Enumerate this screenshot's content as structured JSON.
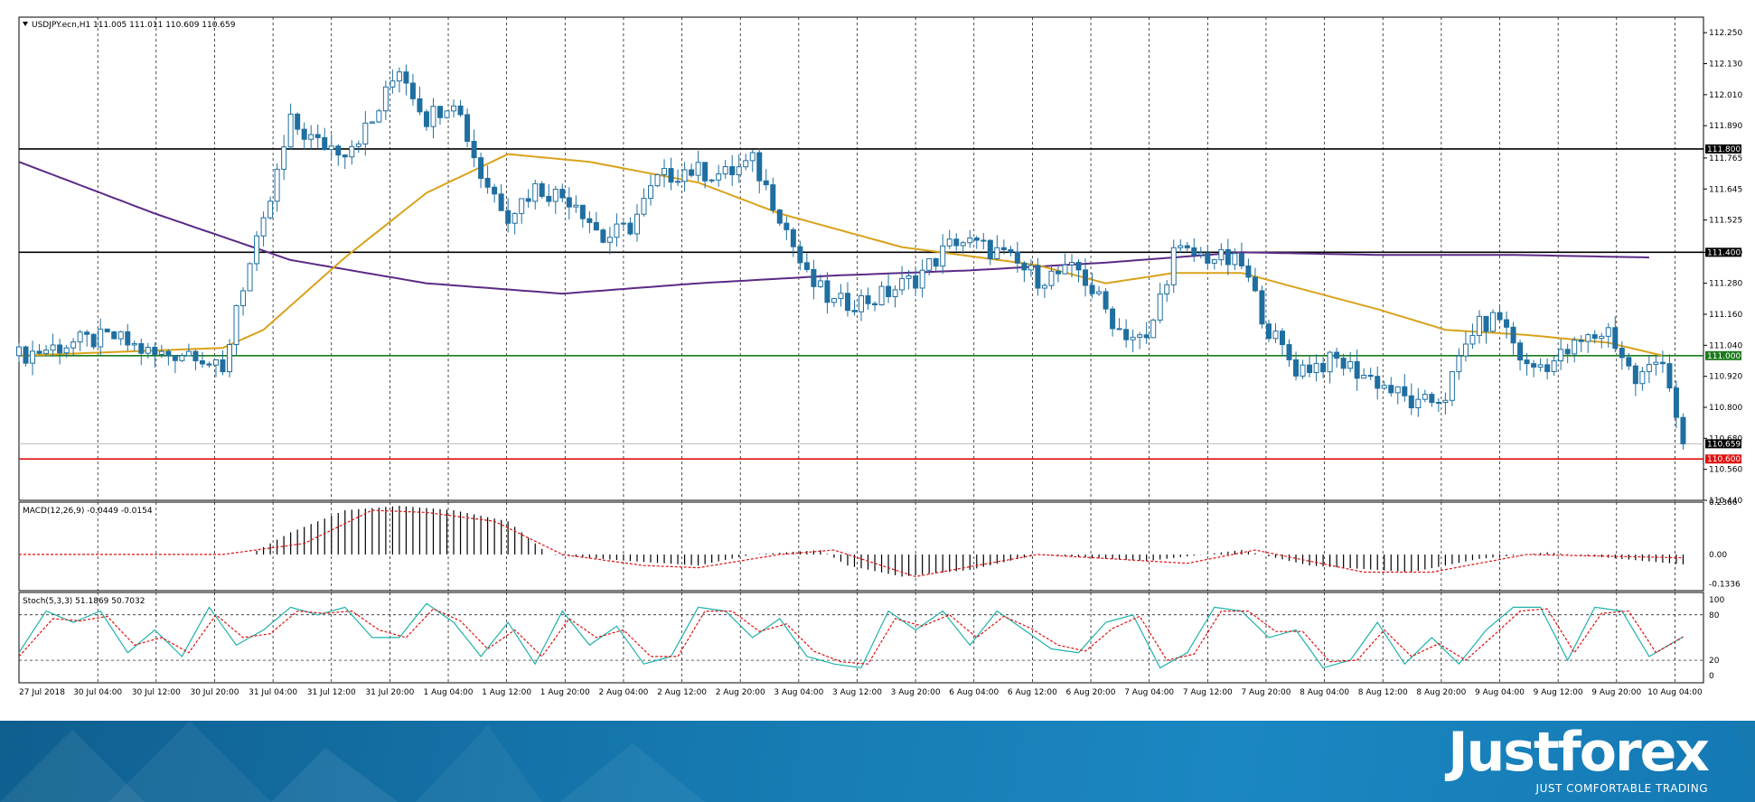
{
  "chart_data": [
    {
      "type": "candlestick",
      "title": "USDJPY.ecn,H1  111.005 111.011 110.609 110.659",
      "ylim": [
        110.44,
        112.31
      ],
      "yticks": [
        "112.250",
        "112.130",
        "112.010",
        "111.890",
        "111.765",
        "111.645",
        "111.525",
        "111.400",
        "111.280",
        "111.160",
        "111.040",
        "110.920",
        "110.800",
        "110.680",
        "110.560",
        "110.440"
      ],
      "xticks": [
        "27 Jul 2018",
        "30 Jul 04:00",
        "30 Jul 12:00",
        "30 Jul 20:00",
        "31 Jul 04:00",
        "31 Jul 12:00",
        "31 Jul 20:00",
        "1 Aug 04:00",
        "1 Aug 12:00",
        "1 Aug 20:00",
        "2 Aug 04:00",
        "2 Aug 12:00",
        "2 Aug 20:00",
        "3 Aug 04:00",
        "3 Aug 12:00",
        "3 Aug 20:00",
        "6 Aug 04:00",
        "6 Aug 12:00",
        "6 Aug 20:00",
        "7 Aug 04:00",
        "7 Aug 12:00",
        "7 Aug 20:00",
        "8 Aug 04:00",
        "8 Aug 12:00",
        "8 Aug 20:00",
        "9 Aug 04:00",
        "9 Aug 12:00",
        "9 Aug 20:00",
        "10 Aug 04:00"
      ],
      "price_path": [
        {
          "t": 0,
          "p": 111.0
        },
        {
          "t": 8,
          "p": 111.05
        },
        {
          "t": 14,
          "p": 111.07
        },
        {
          "t": 20,
          "p": 111.0
        },
        {
          "t": 26,
          "p": 111.02
        },
        {
          "t": 30,
          "p": 110.92
        },
        {
          "t": 32,
          "p": 111.2
        },
        {
          "t": 36,
          "p": 111.5
        },
        {
          "t": 40,
          "p": 111.9
        },
        {
          "t": 44,
          "p": 111.82
        },
        {
          "t": 48,
          "p": 111.8
        },
        {
          "t": 52,
          "p": 111.9
        },
        {
          "t": 56,
          "p": 112.12
        },
        {
          "t": 60,
          "p": 111.92
        },
        {
          "t": 64,
          "p": 112.0
        },
        {
          "t": 68,
          "p": 111.7
        },
        {
          "t": 72,
          "p": 111.55
        },
        {
          "t": 76,
          "p": 111.65
        },
        {
          "t": 82,
          "p": 111.6
        },
        {
          "t": 86,
          "p": 111.45
        },
        {
          "t": 90,
          "p": 111.5
        },
        {
          "t": 94,
          "p": 111.68
        },
        {
          "t": 98,
          "p": 111.72
        },
        {
          "t": 104,
          "p": 111.7
        },
        {
          "t": 108,
          "p": 111.75
        },
        {
          "t": 112,
          "p": 111.55
        },
        {
          "t": 116,
          "p": 111.3
        },
        {
          "t": 120,
          "p": 111.2
        },
        {
          "t": 126,
          "p": 111.22
        },
        {
          "t": 132,
          "p": 111.3
        },
        {
          "t": 138,
          "p": 111.45
        },
        {
          "t": 144,
          "p": 111.4
        },
        {
          "t": 150,
          "p": 111.3
        },
        {
          "t": 156,
          "p": 111.33
        },
        {
          "t": 162,
          "p": 111.1
        },
        {
          "t": 166,
          "p": 111.05
        },
        {
          "t": 170,
          "p": 111.4
        },
        {
          "t": 176,
          "p": 111.38
        },
        {
          "t": 180,
          "p": 111.35
        },
        {
          "t": 184,
          "p": 111.1
        },
        {
          "t": 188,
          "p": 110.95
        },
        {
          "t": 194,
          "p": 110.98
        },
        {
          "t": 200,
          "p": 110.9
        },
        {
          "t": 206,
          "p": 110.8
        },
        {
          "t": 210,
          "p": 110.85
        },
        {
          "t": 214,
          "p": 111.1
        },
        {
          "t": 218,
          "p": 111.15
        },
        {
          "t": 222,
          "p": 110.95
        },
        {
          "t": 226,
          "p": 110.98
        },
        {
          "t": 230,
          "p": 111.05
        },
        {
          "t": 234,
          "p": 111.1
        },
        {
          "t": 238,
          "p": 110.9
        },
        {
          "t": 242,
          "p": 111.0
        },
        {
          "t": 245,
          "p": 110.66
        }
      ],
      "ma_fast": [
        {
          "t": 0,
          "p": 111.0
        },
        {
          "t": 30,
          "p": 111.03
        },
        {
          "t": 36,
          "p": 111.1
        },
        {
          "t": 48,
          "p": 111.38
        },
        {
          "t": 60,
          "p": 111.63
        },
        {
          "t": 72,
          "p": 111.78
        },
        {
          "t": 84,
          "p": 111.75
        },
        {
          "t": 100,
          "p": 111.67
        },
        {
          "t": 112,
          "p": 111.55
        },
        {
          "t": 130,
          "p": 111.42
        },
        {
          "t": 150,
          "p": 111.35
        },
        {
          "t": 160,
          "p": 111.28
        },
        {
          "t": 170,
          "p": 111.32
        },
        {
          "t": 180,
          "p": 111.32
        },
        {
          "t": 200,
          "p": 111.18
        },
        {
          "t": 210,
          "p": 111.1
        },
        {
          "t": 222,
          "p": 111.08
        },
        {
          "t": 234,
          "p": 111.05
        },
        {
          "t": 242,
          "p": 111.0
        }
      ],
      "ma_slow": [
        {
          "t": 0,
          "p": 111.75
        },
        {
          "t": 20,
          "p": 111.55
        },
        {
          "t": 40,
          "p": 111.37
        },
        {
          "t": 60,
          "p": 111.28
        },
        {
          "t": 80,
          "p": 111.24
        },
        {
          "t": 100,
          "p": 111.28
        },
        {
          "t": 120,
          "p": 111.31
        },
        {
          "t": 140,
          "p": 111.33
        },
        {
          "t": 160,
          "p": 111.36
        },
        {
          "t": 180,
          "p": 111.4
        },
        {
          "t": 200,
          "p": 111.39
        },
        {
          "t": 220,
          "p": 111.39
        },
        {
          "t": 240,
          "p": 111.38
        }
      ],
      "levels": [
        {
          "price": 111.8,
          "color": "#000000",
          "label": "111.800"
        },
        {
          "price": 111.4,
          "color": "#000000",
          "label": "111.400"
        },
        {
          "price": 111.0,
          "color": "#1b7a1b",
          "label": "111.000"
        },
        {
          "price": 110.6,
          "color": "#e01010",
          "label": "110.600"
        }
      ],
      "current_price": {
        "price": 110.659,
        "label": "110.659",
        "color": "#000000"
      },
      "colors": {
        "bull": "#1f6fa0",
        "bear": "#1f6fa0",
        "ma_fast": "#d9a21b",
        "ma_slow": "#5b2a86",
        "grid": "#000000"
      }
    },
    {
      "type": "histogram",
      "title": "MACD(12,26,9) -0.0449 -0.0154",
      "ylim": [
        -0.1636,
        0.2366
      ],
      "yticks": [
        "0.2366",
        "0.00",
        "-0.1336"
      ],
      "histogram": [
        {
          "t": 0,
          "v": 0.0
        },
        {
          "t": 34,
          "v": 0.0
        },
        {
          "t": 40,
          "v": 0.1
        },
        {
          "t": 48,
          "v": 0.2
        },
        {
          "t": 56,
          "v": 0.22
        },
        {
          "t": 64,
          "v": 0.2
        },
        {
          "t": 72,
          "v": 0.15
        },
        {
          "t": 78,
          "v": 0.0
        },
        {
          "t": 90,
          "v": -0.03
        },
        {
          "t": 100,
          "v": -0.05
        },
        {
          "t": 108,
          "v": 0.0
        },
        {
          "t": 118,
          "v": 0.02
        },
        {
          "t": 122,
          "v": -0.05
        },
        {
          "t": 130,
          "v": -0.1
        },
        {
          "t": 140,
          "v": -0.07
        },
        {
          "t": 150,
          "v": 0.0
        },
        {
          "t": 166,
          "v": -0.03
        },
        {
          "t": 180,
          "v": 0.02
        },
        {
          "t": 190,
          "v": -0.05
        },
        {
          "t": 205,
          "v": -0.08
        },
        {
          "t": 215,
          "v": -0.02
        },
        {
          "t": 225,
          "v": 0.01
        },
        {
          "t": 245,
          "v": -0.045
        }
      ],
      "signal": [
        {
          "t": 0,
          "v": 0.0
        },
        {
          "t": 30,
          "v": 0.0
        },
        {
          "t": 42,
          "v": 0.05
        },
        {
          "t": 52,
          "v": 0.2
        },
        {
          "t": 60,
          "v": 0.19
        },
        {
          "t": 70,
          "v": 0.15
        },
        {
          "t": 80,
          "v": 0.0
        },
        {
          "t": 92,
          "v": -0.05
        },
        {
          "t": 100,
          "v": -0.06
        },
        {
          "t": 112,
          "v": 0.0
        },
        {
          "t": 120,
          "v": 0.02
        },
        {
          "t": 132,
          "v": -0.1
        },
        {
          "t": 150,
          "v": 0.0
        },
        {
          "t": 172,
          "v": -0.04
        },
        {
          "t": 182,
          "v": 0.02
        },
        {
          "t": 198,
          "v": -0.08
        },
        {
          "t": 208,
          "v": -0.08
        },
        {
          "t": 222,
          "v": 0.0
        },
        {
          "t": 245,
          "v": -0.015
        }
      ],
      "colors": {
        "histogram": "#000000",
        "signal": "#e01010"
      }
    },
    {
      "type": "line",
      "title": "Stoch(5,3,3) 51.1869 50.7032",
      "ylim": [
        -5,
        100
      ],
      "yticks": [
        "100",
        "80",
        "20",
        "0"
      ],
      "levels": [
        80,
        20
      ],
      "main": [
        {
          "t": 0,
          "v": 30
        },
        {
          "t": 4,
          "v": 85
        },
        {
          "t": 8,
          "v": 70
        },
        {
          "t": 12,
          "v": 85
        },
        {
          "t": 16,
          "v": 30
        },
        {
          "t": 20,
          "v": 60
        },
        {
          "t": 24,
          "v": 25
        },
        {
          "t": 28,
          "v": 90
        },
        {
          "t": 32,
          "v": 40
        },
        {
          "t": 36,
          "v": 60
        },
        {
          "t": 40,
          "v": 90
        },
        {
          "t": 44,
          "v": 80
        },
        {
          "t": 48,
          "v": 90
        },
        {
          "t": 52,
          "v": 50
        },
        {
          "t": 56,
          "v": 50
        },
        {
          "t": 60,
          "v": 95
        },
        {
          "t": 64,
          "v": 70
        },
        {
          "t": 68,
          "v": 25
        },
        {
          "t": 72,
          "v": 70
        },
        {
          "t": 76,
          "v": 15
        },
        {
          "t": 80,
          "v": 85
        },
        {
          "t": 84,
          "v": 40
        },
        {
          "t": 88,
          "v": 65
        },
        {
          "t": 92,
          "v": 15
        },
        {
          "t": 96,
          "v": 25
        },
        {
          "t": 100,
          "v": 90
        },
        {
          "t": 104,
          "v": 85
        },
        {
          "t": 108,
          "v": 50
        },
        {
          "t": 112,
          "v": 75
        },
        {
          "t": 116,
          "v": 25
        },
        {
          "t": 120,
          "v": 15
        },
        {
          "t": 124,
          "v": 10
        },
        {
          "t": 128,
          "v": 85
        },
        {
          "t": 132,
          "v": 60
        },
        {
          "t": 136,
          "v": 85
        },
        {
          "t": 140,
          "v": 40
        },
        {
          "t": 144,
          "v": 85
        },
        {
          "t": 148,
          "v": 60
        },
        {
          "t": 152,
          "v": 35
        },
        {
          "t": 156,
          "v": 30
        },
        {
          "t": 160,
          "v": 70
        },
        {
          "t": 164,
          "v": 80
        },
        {
          "t": 168,
          "v": 10
        },
        {
          "t": 172,
          "v": 30
        },
        {
          "t": 176,
          "v": 90
        },
        {
          "t": 180,
          "v": 85
        },
        {
          "t": 184,
          "v": 50
        },
        {
          "t": 188,
          "v": 60
        },
        {
          "t": 192,
          "v": 10
        },
        {
          "t": 196,
          "v": 20
        },
        {
          "t": 200,
          "v": 70
        },
        {
          "t": 204,
          "v": 15
        },
        {
          "t": 208,
          "v": 50
        },
        {
          "t": 212,
          "v": 15
        },
        {
          "t": 216,
          "v": 60
        },
        {
          "t": 220,
          "v": 90
        },
        {
          "t": 224,
          "v": 90
        },
        {
          "t": 228,
          "v": 20
        },
        {
          "t": 232,
          "v": 90
        },
        {
          "t": 236,
          "v": 85
        },
        {
          "t": 240,
          "v": 25
        },
        {
          "t": 245,
          "v": 51
        }
      ],
      "signal": [
        {
          "t": 0,
          "v": 25
        },
        {
          "t": 5,
          "v": 75
        },
        {
          "t": 9,
          "v": 72
        },
        {
          "t": 13,
          "v": 78
        },
        {
          "t": 17,
          "v": 40
        },
        {
          "t": 21,
          "v": 50
        },
        {
          "t": 25,
          "v": 30
        },
        {
          "t": 29,
          "v": 80
        },
        {
          "t": 33,
          "v": 50
        },
        {
          "t": 37,
          "v": 55
        },
        {
          "t": 41,
          "v": 85
        },
        {
          "t": 45,
          "v": 82
        },
        {
          "t": 49,
          "v": 85
        },
        {
          "t": 53,
          "v": 60
        },
        {
          "t": 57,
          "v": 50
        },
        {
          "t": 61,
          "v": 88
        },
        {
          "t": 65,
          "v": 72
        },
        {
          "t": 69,
          "v": 35
        },
        {
          "t": 73,
          "v": 60
        },
        {
          "t": 77,
          "v": 25
        },
        {
          "t": 81,
          "v": 75
        },
        {
          "t": 85,
          "v": 50
        },
        {
          "t": 89,
          "v": 60
        },
        {
          "t": 93,
          "v": 25
        },
        {
          "t": 97,
          "v": 25
        },
        {
          "t": 101,
          "v": 85
        },
        {
          "t": 105,
          "v": 85
        },
        {
          "t": 109,
          "v": 58
        },
        {
          "t": 113,
          "v": 68
        },
        {
          "t": 117,
          "v": 32
        },
        {
          "t": 121,
          "v": 18
        },
        {
          "t": 125,
          "v": 15
        },
        {
          "t": 129,
          "v": 75
        },
        {
          "t": 133,
          "v": 65
        },
        {
          "t": 137,
          "v": 80
        },
        {
          "t": 141,
          "v": 50
        },
        {
          "t": 145,
          "v": 78
        },
        {
          "t": 149,
          "v": 62
        },
        {
          "t": 153,
          "v": 40
        },
        {
          "t": 157,
          "v": 32
        },
        {
          "t": 161,
          "v": 62
        },
        {
          "t": 165,
          "v": 78
        },
        {
          "t": 169,
          "v": 20
        },
        {
          "t": 173,
          "v": 28
        },
        {
          "t": 177,
          "v": 85
        },
        {
          "t": 181,
          "v": 85
        },
        {
          "t": 185,
          "v": 58
        },
        {
          "t": 189,
          "v": 58
        },
        {
          "t": 193,
          "v": 18
        },
        {
          "t": 197,
          "v": 20
        },
        {
          "t": 201,
          "v": 60
        },
        {
          "t": 205,
          "v": 25
        },
        {
          "t": 209,
          "v": 42
        },
        {
          "t": 213,
          "v": 20
        },
        {
          "t": 217,
          "v": 52
        },
        {
          "t": 221,
          "v": 85
        },
        {
          "t": 225,
          "v": 88
        },
        {
          "t": 229,
          "v": 30
        },
        {
          "t": 233,
          "v": 82
        },
        {
          "t": 237,
          "v": 85
        },
        {
          "t": 241,
          "v": 30
        },
        {
          "t": 245,
          "v": 50.7
        }
      ],
      "colors": {
        "main": "#20b2aa",
        "signal": "#e01010",
        "levels": "#000000"
      }
    }
  ],
  "brand": {
    "name": "Justforex",
    "tagline": "JUST COMFORTABLE TRADING"
  }
}
